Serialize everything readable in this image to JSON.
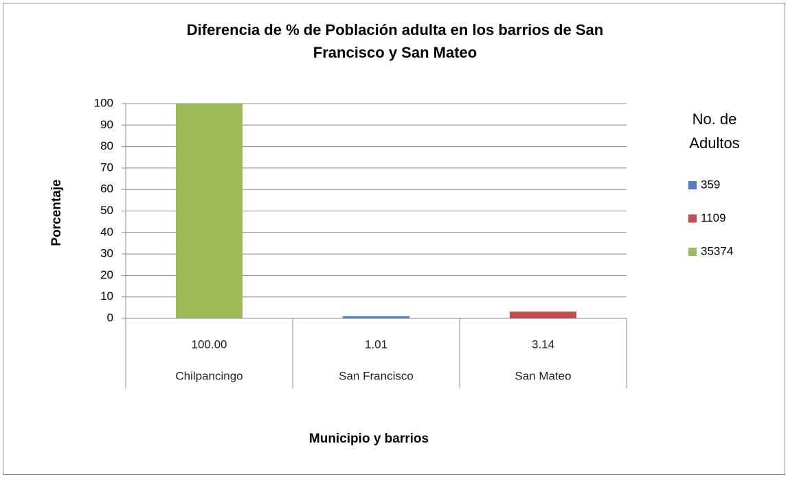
{
  "chart_data": {
    "type": "bar",
    "title": [
      "Diferencia de % de Población adulta en los barrios de San",
      "Francisco y San Mateo"
    ],
    "y_label": "Porcentaje",
    "x_label": "Municipio y barrios",
    "legend_title": [
      "No. de",
      "Adultos"
    ],
    "categories": [
      "Chilpancingo",
      "San Francisco",
      "San Mateo"
    ],
    "category_values": [
      "100.00",
      "1.01",
      "3.14"
    ],
    "series": [
      {
        "name": "359",
        "color": "#4f81bd",
        "values": [
          null,
          1.01,
          null
        ]
      },
      {
        "name": "1109",
        "color": "#c0504d",
        "values": [
          null,
          null,
          3.14
        ]
      },
      {
        "name": "35374",
        "color": "#9bbb59",
        "values": [
          100,
          null,
          null
        ]
      }
    ],
    "ylim": [
      0,
      100
    ],
    "yticks": [
      0,
      10,
      20,
      30,
      40,
      50,
      60,
      70,
      80,
      90,
      100
    ],
    "grid": true,
    "legend": "right"
  }
}
